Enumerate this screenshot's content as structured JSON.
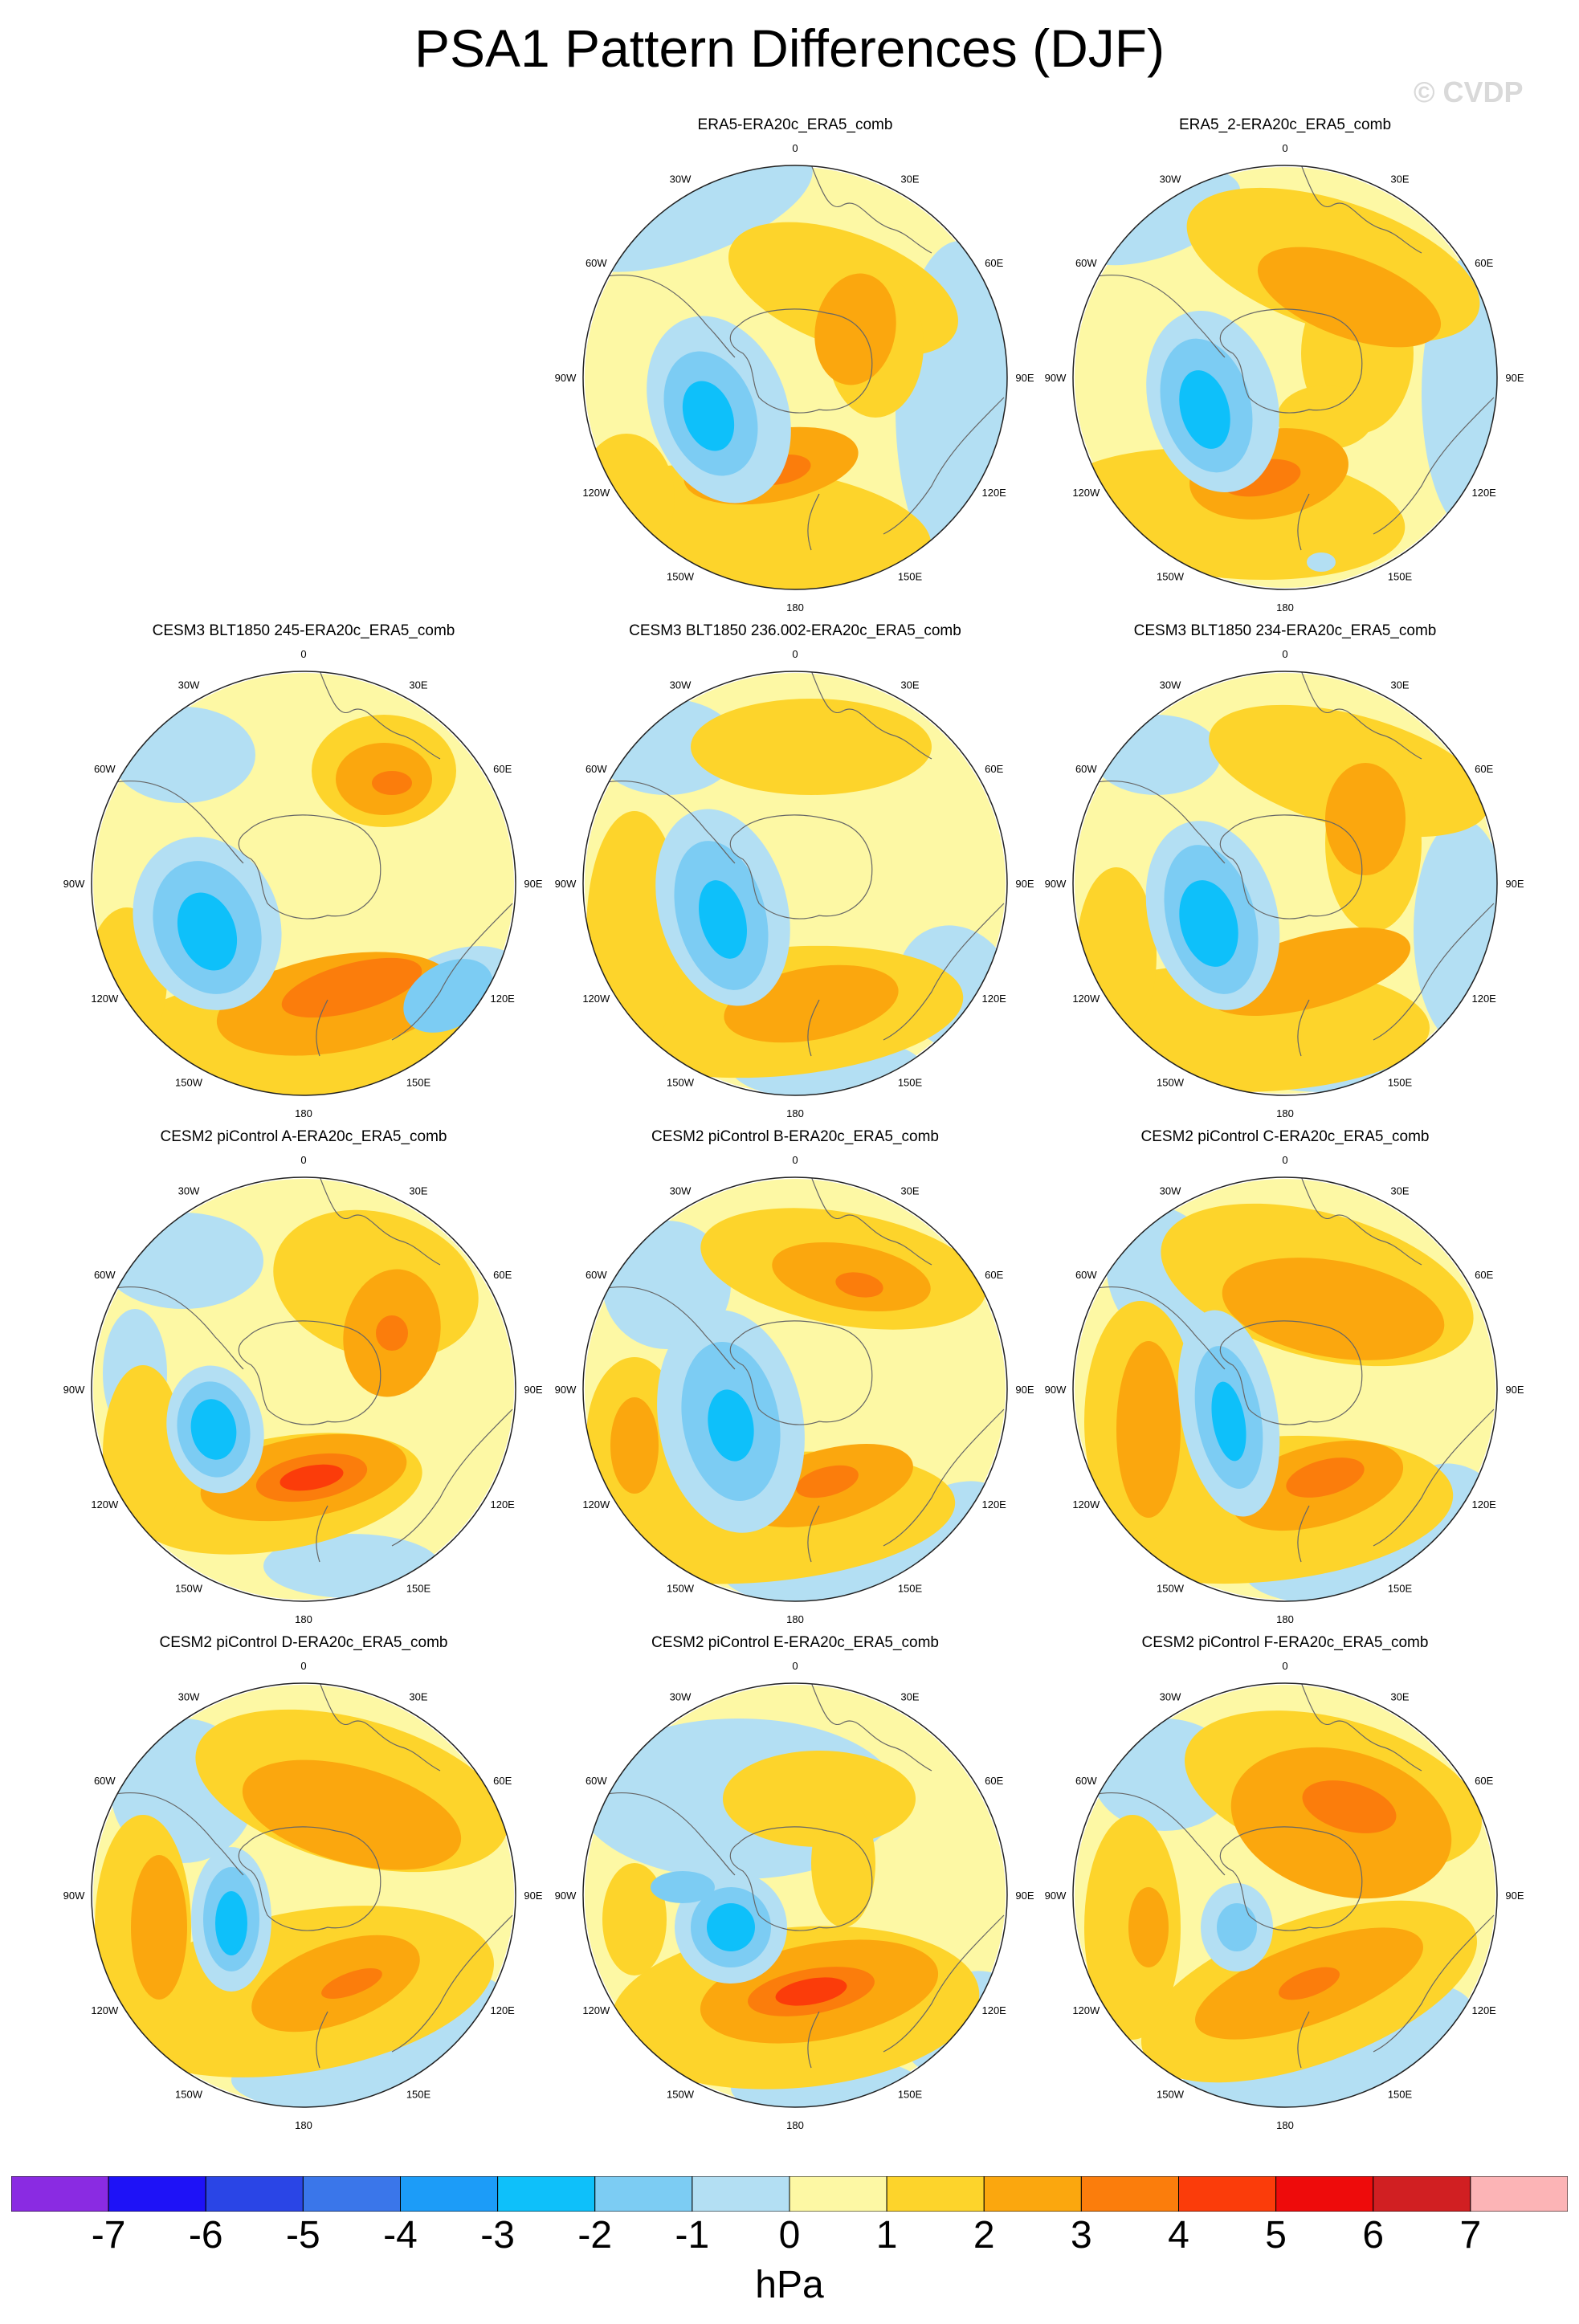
{
  "title": "PSA1 Pattern Differences (DJF)",
  "watermark": "© CVDP",
  "lon_labels": [
    "0",
    "30E",
    "60E",
    "90E",
    "120E",
    "150E",
    "180",
    "150W",
    "120W",
    "90W",
    "60W",
    "30W"
  ],
  "panels": [
    {
      "name": "ERA5-ERA20c_ERA5_comb",
      "variant": "era5"
    },
    {
      "name": "ERA5_2-ERA20c_ERA5_comb",
      "variant": "era5b"
    },
    {
      "name": "CESM3 BLT1850 245-ERA20c_ERA5_comb",
      "variant": "c245"
    },
    {
      "name": "CESM3 BLT1850 236.002-ERA20c_ERA5_comb",
      "variant": "c236"
    },
    {
      "name": "CESM3 BLT1850 234-ERA20c_ERA5_comb",
      "variant": "c234"
    },
    {
      "name": "CESM2 piControl A-ERA20c_ERA5_comb",
      "variant": "pa"
    },
    {
      "name": "CESM2 piControl B-ERA20c_ERA5_comb",
      "variant": "pb"
    },
    {
      "name": "CESM2 piControl C-ERA20c_ERA5_comb",
      "variant": "pc"
    },
    {
      "name": "CESM2 piControl D-ERA20c_ERA5_comb",
      "variant": "pd"
    },
    {
      "name": "CESM2 piControl E-ERA20c_ERA5_comb",
      "variant": "pe"
    },
    {
      "name": "CESM2 piControl F-ERA20c_ERA5_comb",
      "variant": "pf"
    }
  ],
  "colorbar": {
    "levels": [
      "-7",
      "-6",
      "-5",
      "-4",
      "-3",
      "-2",
      "-1",
      "0",
      "1",
      "2",
      "3",
      "4",
      "5",
      "6",
      "7"
    ],
    "colors": [
      "#8a2be2",
      "#1e12f7",
      "#2a45e6",
      "#3a76ea",
      "#1c9cf8",
      "#0ec0fa",
      "#7cccf3",
      "#b3dff3",
      "#fdf8a4",
      "#fdd42b",
      "#fba70e",
      "#fb7d0c",
      "#fb3c0a",
      "#ee0b0b",
      "#d11f22",
      "#fcb4b6"
    ],
    "units": "hPa"
  }
}
